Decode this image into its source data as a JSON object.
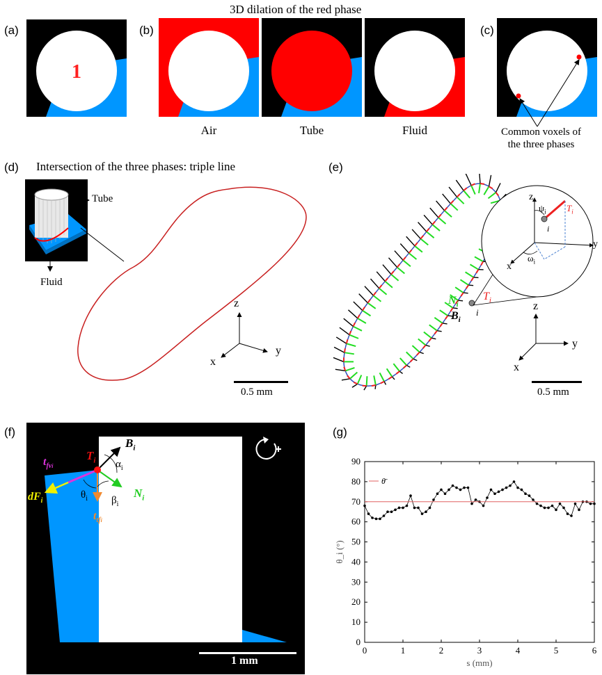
{
  "figure": {
    "top_title": "3D dilation of the red phase",
    "panels": {
      "a": {
        "label": "(a)",
        "phase_number": "1"
      },
      "b": {
        "label": "(b)",
        "captions": [
          "Air",
          "Tube",
          "Fluid"
        ]
      },
      "c": {
        "label": "(c)",
        "annotation_line1": "Common voxels of",
        "annotation_line2": "the three phases"
      },
      "d": {
        "label": "(d)",
        "title": "Intersection of the three phases: triple line",
        "inset_tube": "Tube",
        "inset_fluid": "Fluid",
        "axes": {
          "z": "z",
          "y": "y",
          "x": "x"
        },
        "scale": "0.5 mm"
      },
      "e": {
        "label": "(e)",
        "N": "N",
        "B": "B",
        "T": "T",
        "i": "i",
        "axes": {
          "z": "z",
          "y": "y",
          "x": "x"
        },
        "zoom": {
          "z": "z",
          "y": "y",
          "x": "x",
          "psi": "ψ",
          "omega": "ω",
          "T": "T",
          "i": "i"
        },
        "scale": "0.5 mm"
      },
      "f": {
        "label": "(f)",
        "B": "B",
        "T": "T",
        "N": "N",
        "alpha": "α",
        "beta": "β",
        "theta": "θ",
        "tfv": "t",
        "tfv_sub": "fv",
        "tf": "t",
        "tf_sub": "tf",
        "dF": "dF",
        "scale": "1 mm"
      },
      "g": {
        "label": "(g)"
      }
    },
    "colors": {
      "red": "#ff0000",
      "blue": "#0096ff",
      "black": "#000000",
      "green": "#22dd22",
      "magenta": "#dd33dd",
      "orange": "#f08a30",
      "yellow": "#f0f000",
      "line_red": "#e06060"
    }
  },
  "chart_data": {
    "type": "line",
    "title": "",
    "xlabel": "s (mm)",
    "ylabel": "θ_i (°)",
    "xlim": [
      0,
      6
    ],
    "ylim": [
      0,
      90
    ],
    "xticks": [
      0,
      1,
      2,
      3,
      4,
      5,
      6
    ],
    "yticks": [
      0,
      10,
      20,
      30,
      40,
      50,
      60,
      70,
      80,
      90
    ],
    "grid": false,
    "legend": "top-left",
    "series": [
      {
        "name": "",
        "color": "#000000",
        "x": [
          0.0,
          0.1,
          0.2,
          0.3,
          0.4,
          0.5,
          0.6,
          0.7,
          0.8,
          0.9,
          1.0,
          1.1,
          1.2,
          1.3,
          1.4,
          1.5,
          1.6,
          1.7,
          1.8,
          1.9,
          2.0,
          2.1,
          2.2,
          2.3,
          2.4,
          2.5,
          2.6,
          2.7,
          2.8,
          2.9,
          3.0,
          3.1,
          3.2,
          3.3,
          3.4,
          3.5,
          3.6,
          3.7,
          3.8,
          3.9,
          4.0,
          4.1,
          4.2,
          4.3,
          4.4,
          4.5,
          4.6,
          4.7,
          4.8,
          4.9,
          5.0,
          5.1,
          5.2,
          5.3,
          5.4,
          5.5,
          5.6,
          5.7,
          5.8,
          5.9,
          6.0
        ],
        "y": [
          68,
          64,
          62,
          61.5,
          61.5,
          63,
          65,
          65,
          66,
          67,
          67,
          68,
          73,
          67,
          67,
          64,
          65,
          67,
          71,
          74,
          76,
          74,
          76,
          78,
          77,
          76,
          77,
          77,
          69,
          71,
          70,
          68,
          72,
          76,
          74,
          75,
          76,
          77,
          78,
          80,
          77,
          76,
          74,
          73,
          71,
          69,
          68,
          67,
          67,
          68,
          66,
          69,
          67,
          64,
          63,
          69,
          66,
          70,
          70,
          69,
          69
        ]
      },
      {
        "name": "θ̄",
        "color": "#e06060",
        "x": [
          0,
          6
        ],
        "y": [
          70,
          70
        ]
      }
    ]
  }
}
